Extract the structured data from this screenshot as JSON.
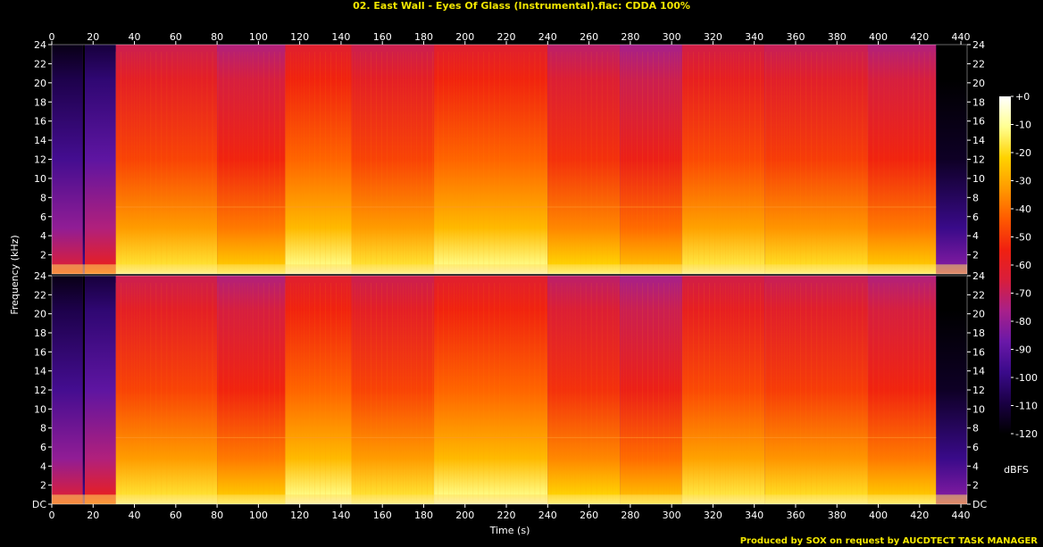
{
  "window": {
    "title": "02. East Wall - Eyes Of Glass (Instrumental).flac: CDDA 100%",
    "footer": "Produced by SOX on request by AUCDTECT TASK MANAGER"
  },
  "chart_data": {
    "type": "heatmap",
    "title": "02. East Wall - Eyes Of Glass (Instrumental).flac: CDDA 100%",
    "xlabel": "Time (s)",
    "ylabel": "Frequency (kHz)",
    "x_ticks": [
      0,
      20,
      40,
      60,
      80,
      100,
      120,
      140,
      160,
      180,
      200,
      220,
      240,
      260,
      280,
      300,
      320,
      340,
      360,
      380,
      400,
      420,
      440
    ],
    "y_tick_labels_top": [
      "24",
      "22",
      "20",
      "18",
      "16",
      "14",
      "12",
      "10",
      "8",
      "6",
      "4",
      "2"
    ],
    "y_tick_labels_bottom": [
      "24",
      "22",
      "20",
      "18",
      "16",
      "14",
      "12",
      "10",
      "8",
      "6",
      "4",
      "2",
      "DC"
    ],
    "y_ticks": [
      0,
      2,
      4,
      6,
      8,
      10,
      12,
      14,
      16,
      18,
      20,
      22,
      24
    ],
    "xlim": [
      0,
      443
    ],
    "ylim": [
      0,
      24
    ],
    "channels": 2,
    "colorbar": {
      "label": "dBFS",
      "ticks": [
        "+0",
        "-10",
        "-20",
        "-30",
        "-40",
        "-50",
        "-60",
        "-70",
        "-80",
        "-90",
        "-100",
        "-110",
        "-120"
      ],
      "range": [
        -120,
        0
      ]
    },
    "palette": [
      "#000000",
      "#1a0044",
      "#3a0a8a",
      "#6a18a8",
      "#a8208a",
      "#d81e3c",
      "#f02010",
      "#ff5a00",
      "#ff9a00",
      "#ffd200",
      "#ffff90",
      "#ffffff"
    ],
    "segments": [
      {
        "start": 0,
        "end": 15,
        "level": 0.45
      },
      {
        "start": 15,
        "end": 16,
        "level": 0.2
      },
      {
        "start": 16,
        "end": 31,
        "level": 0.5
      },
      {
        "start": 31,
        "end": 80,
        "level": 0.85
      },
      {
        "start": 80,
        "end": 113,
        "level": 0.8
      },
      {
        "start": 113,
        "end": 145,
        "level": 0.9
      },
      {
        "start": 145,
        "end": 185,
        "level": 0.85
      },
      {
        "start": 185,
        "end": 240,
        "level": 0.9
      },
      {
        "start": 240,
        "end": 275,
        "level": 0.82
      },
      {
        "start": 275,
        "end": 305,
        "level": 0.78
      },
      {
        "start": 305,
        "end": 345,
        "level": 0.86
      },
      {
        "start": 345,
        "end": 395,
        "level": 0.84
      },
      {
        "start": 395,
        "end": 428,
        "level": 0.8
      },
      {
        "start": 428,
        "end": 443,
        "level": 0.3
      }
    ]
  }
}
